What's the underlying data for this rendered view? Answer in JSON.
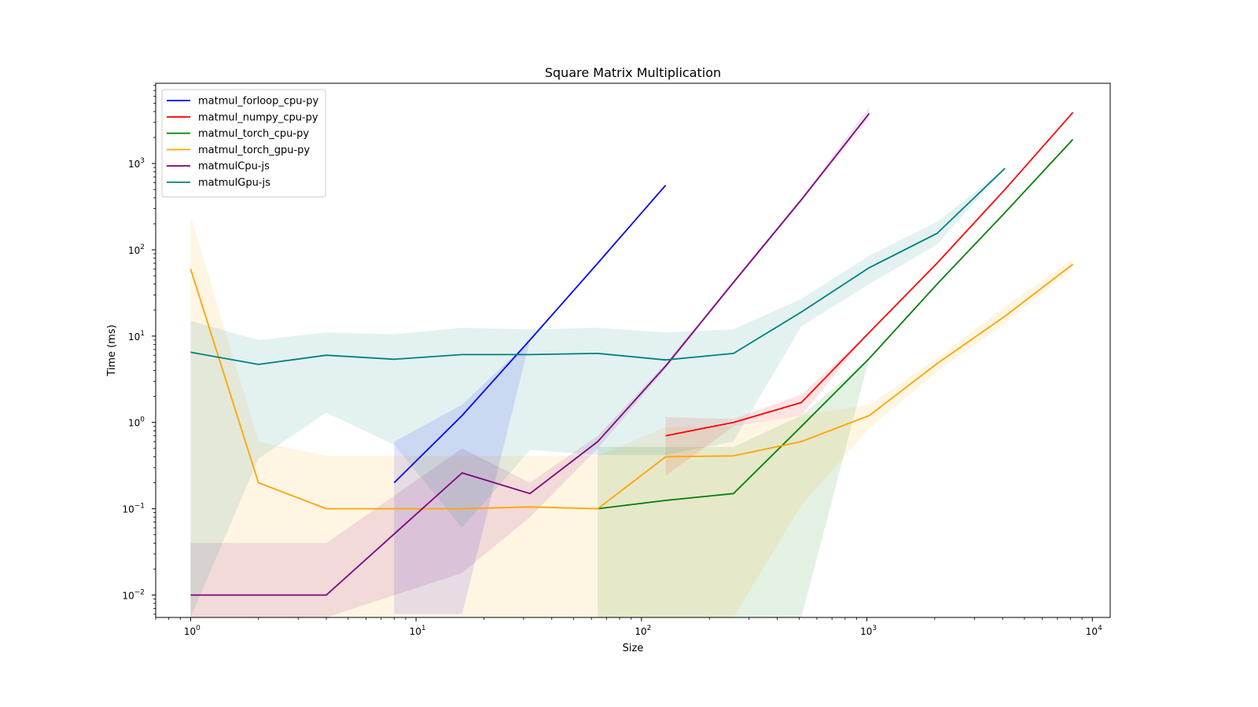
{
  "chart_data": {
    "type": "line",
    "title": "Square Matrix Multiplication",
    "xlabel": "Size",
    "ylabel": "Time (ms)",
    "xscale": "log",
    "yscale": "log",
    "xlim": [
      0.7,
      12000
    ],
    "ylim": [
      0.0055,
      8500
    ],
    "x_ticks": [
      {
        "value": 1,
        "base": "10",
        "exp": "0"
      },
      {
        "value": 10,
        "base": "10",
        "exp": "1"
      },
      {
        "value": 100,
        "base": "10",
        "exp": "2"
      },
      {
        "value": 1000,
        "base": "10",
        "exp": "3"
      },
      {
        "value": 10000,
        "base": "10",
        "exp": "4"
      }
    ],
    "y_ticks": [
      {
        "value": 0.01,
        "base": "10",
        "exp": "−2"
      },
      {
        "value": 0.1,
        "base": "10",
        "exp": "−1"
      },
      {
        "value": 1,
        "base": "10",
        "exp": "0"
      },
      {
        "value": 10,
        "base": "10",
        "exp": "1"
      },
      {
        "value": 100,
        "base": "10",
        "exp": "2"
      },
      {
        "value": 1000,
        "base": "10",
        "exp": "3"
      }
    ],
    "grid": false,
    "legend_position": "upper-left",
    "series": [
      {
        "name": "matmul_forloop_cpu-py",
        "color": "#0000ff",
        "x": [
          8,
          16,
          32,
          64,
          128
        ],
        "y": [
          0.2,
          1.2,
          9,
          70,
          560
        ],
        "lower": [
          0.006,
          0.006,
          9,
          70,
          560
        ],
        "upper": [
          0.6,
          1.6,
          9,
          70,
          560
        ]
      },
      {
        "name": "matmul_numpy_cpu-py",
        "color": "#ff0000",
        "x": [
          128,
          256,
          512,
          1024,
          2048,
          4096,
          8192
        ],
        "y": [
          0.7,
          1.0,
          1.7,
          11,
          70,
          500,
          3900
        ],
        "lower": [
          0.24,
          0.9,
          1.2,
          11,
          70,
          500,
          3900
        ],
        "upper": [
          1.15,
          1.1,
          2.1,
          11,
          70,
          500,
          3900
        ]
      },
      {
        "name": "matmul_torch_cpu-py",
        "color": "#008000",
        "x": [
          64,
          128,
          256,
          512,
          1024,
          2048,
          4096,
          8192
        ],
        "y": [
          0.1,
          0.125,
          0.15,
          0.9,
          5.5,
          40,
          270,
          1900
        ],
        "lower": [
          0.0055,
          0.0055,
          0.0055,
          0.0055,
          5.5,
          40,
          270,
          1900
        ],
        "upper": [
          0.52,
          0.52,
          0.52,
          1.2,
          5.5,
          40,
          270,
          1900
        ]
      },
      {
        "name": "matmul_torch_gpu-py",
        "color": "#ffa500",
        "x": [
          1,
          2,
          4,
          8,
          16,
          32,
          64,
          128,
          256,
          512,
          1024,
          2048,
          4096,
          8192
        ],
        "y": [
          60,
          0.2,
          0.1,
          0.1,
          0.1,
          0.105,
          0.1,
          0.4,
          0.41,
          0.6,
          1.2,
          4.8,
          17,
          68
        ],
        "lower": [
          0.0055,
          0.0055,
          0.0055,
          0.0055,
          0.0055,
          0.0055,
          0.0055,
          0.0055,
          0.0055,
          0.11,
          0.85,
          3.9,
          14,
          60
        ],
        "upper": [
          250,
          0.6,
          0.41,
          0.41,
          0.41,
          0.41,
          0.41,
          0.88,
          0.9,
          1.2,
          1.6,
          5.5,
          22,
          78
        ]
      },
      {
        "name": "matmulCpu-js",
        "color": "#800080",
        "x": [
          1,
          2,
          4,
          16,
          32,
          64,
          128,
          256,
          512,
          1024
        ],
        "y": [
          0.01,
          0.01,
          0.01,
          0.26,
          0.15,
          0.6,
          4.5,
          42,
          380,
          3800
        ],
        "lower": [
          0.0055,
          0.0055,
          0.0055,
          0.018,
          0.08,
          0.5,
          4.2,
          40,
          360,
          3400
        ],
        "upper": [
          0.04,
          0.04,
          0.04,
          0.5,
          0.2,
          0.7,
          4.8,
          45,
          400,
          4500
        ]
      },
      {
        "name": "matmulGpu-js",
        "color": "#008080",
        "x": [
          1,
          2,
          4,
          8,
          16,
          32,
          64,
          128,
          256,
          512,
          1024,
          2048,
          4096
        ],
        "y": [
          6.5,
          4.7,
          6,
          5.4,
          6.1,
          6.1,
          6.3,
          5.3,
          6.3,
          19,
          62,
          155,
          880
        ],
        "lower": [
          0.0055,
          0.38,
          1.3,
          0.55,
          0.06,
          0.48,
          0.42,
          0.42,
          0.6,
          13,
          40,
          115,
          880
        ],
        "upper": [
          15,
          9,
          11,
          10.5,
          12.5,
          12,
          12.5,
          11,
          12,
          27,
          85,
          210,
          880
        ]
      }
    ]
  }
}
